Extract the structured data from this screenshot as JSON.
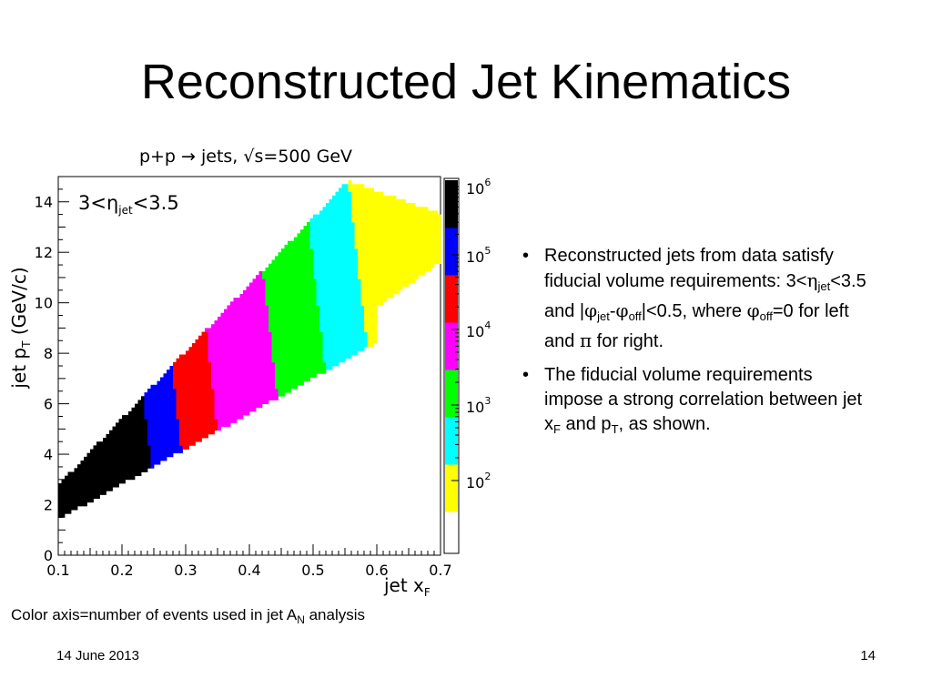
{
  "slide": {
    "title": "Reconstructed Jet Kinematics",
    "caption_text": "Color axis=number of events used in jet A",
    "caption_sub": "N",
    "caption_tail": " analysis",
    "footer_date": "14 June 2013",
    "page_number": "14"
  },
  "bullets": {
    "b1": {
      "p1": "Reconstructed jets from data satisfy fiducial volume requirements:  3<",
      "eta": "η",
      "jet_sub": "jet",
      "p2": "<3.5 and |",
      "phi1": "φ",
      "jet_sub2": "jet",
      "dash": "-",
      "phi2": "φ",
      "off_sub": "off",
      "p3": "|<0.5, where ",
      "phi3": "φ",
      "off_sub2": "off",
      "p4": "=0 for left and ",
      "pi": "π",
      "p5": " for right."
    },
    "b2": {
      "p1": "The fiducial volume requirements impose a strong correlation between jet x",
      "F": "F",
      "p2": " and p",
      "T": "T",
      "p3": ", as shown."
    }
  },
  "chart_data": {
    "type": "heatmap",
    "title": "p+p → jets, √s=500 GeV",
    "annotation": "3<η",
    "annotation_sub": "jet",
    "annotation_tail": "<3.5",
    "xlabel": "jet x",
    "xlabel_sub": "F",
    "ylabel": "jet p",
    "ylabel_sub": "T",
    "ylabel_tail": " (GeV/c)",
    "xlim": [
      0.1,
      0.7
    ],
    "ylim": [
      0,
      15
    ],
    "x_ticks": [
      "0.1",
      "0.2",
      "0.3",
      "0.4",
      "0.5",
      "0.6",
      "0.7"
    ],
    "y_ticks": [
      "0",
      "2",
      "4",
      "6",
      "8",
      "10",
      "12",
      "14"
    ],
    "colorbar": {
      "scale": "log",
      "labels": [
        "10",
        "10",
        "10",
        "10",
        "10"
      ],
      "exponents": [
        "2",
        "3",
        "4",
        "5",
        "6"
      ],
      "colors_low_to_high": [
        "#ffff00",
        "#00ffff",
        "#00ff00",
        "#ff00ff",
        "#ff0000",
        "#0000ff",
        "#000000"
      ]
    },
    "bands": [
      {
        "color": "#000000",
        "x_range": [
          0.1,
          0.24
        ],
        "pt_range": [
          1.5,
          4.9
        ],
        "counts": "> 10^5.5"
      },
      {
        "color": "#0000ff",
        "x_range": [
          0.24,
          0.29
        ],
        "pt_range": [
          3.3,
          6.2
        ],
        "counts": "10^5 – 10^5.5"
      },
      {
        "color": "#ff0000",
        "x_range": [
          0.28,
          0.36
        ],
        "pt_range": [
          4.7,
          8.0
        ],
        "counts": "10^4.5 – 10^5"
      },
      {
        "color": "#ff00ff",
        "x_range": [
          0.33,
          0.45
        ],
        "pt_range": [
          5.6,
          10.1
        ],
        "counts": "10^4 – 10^4.5"
      },
      {
        "color": "#00ff00",
        "x_range": [
          0.41,
          0.53
        ],
        "pt_range": [
          7.0,
          11.8
        ],
        "counts": "10^3.5 – 10^4"
      },
      {
        "color": "#00ffff",
        "x_range": [
          0.48,
          0.6
        ],
        "pt_range": [
          8.4,
          13.1
        ],
        "counts": "10^3 – 10^3.5"
      },
      {
        "color": "#ffff00",
        "x_range": [
          0.55,
          0.7
        ],
        "pt_range": [
          9.9,
          14.7
        ],
        "counts": "10^2 – 10^3"
      }
    ]
  }
}
